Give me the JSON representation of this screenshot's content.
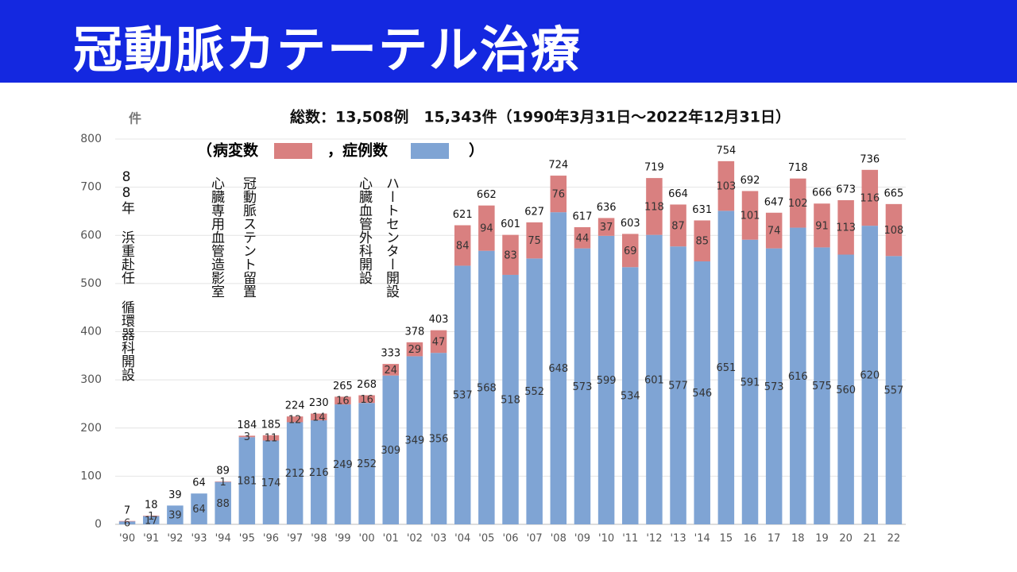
{
  "header": {
    "title": "冠動脈カテーテル治療"
  },
  "chart_data": {
    "type": "stacked_bar",
    "title": "総数：13,508例　15,343件（1990年3月31日～2022年12月31日）",
    "y_label": "件",
    "legend_open": "（",
    "legend_close": "）",
    "categories": [
      "'90",
      "'91",
      "'92",
      "'93",
      "'94",
      "'95",
      "'96",
      "'97",
      "'98",
      "'99",
      "'00",
      "'01",
      "'02",
      "'03",
      "'04",
      "'05",
      "'06",
      "'07",
      "'08",
      "'09",
      "'10",
      "'11",
      "'12",
      "'13",
      "'14",
      "15",
      "16",
      "17",
      "18",
      "19",
      "20",
      "21",
      "22"
    ],
    "series": [
      {
        "name": "，症例数",
        "color": "#7fa4d4",
        "values": [
          6,
          17,
          39,
          64,
          88,
          181,
          174,
          212,
          216,
          249,
          252,
          309,
          349,
          356,
          537,
          568,
          518,
          552,
          648,
          573,
          599,
          534,
          601,
          577,
          546,
          651,
          591,
          573,
          616,
          575,
          560,
          620,
          557
        ]
      },
      {
        "name": "病変数",
        "color": "#d98080",
        "values": [
          1,
          1,
          0,
          0,
          1,
          3,
          11,
          12,
          14,
          16,
          16,
          24,
          29,
          47,
          84,
          94,
          83,
          75,
          76,
          44,
          37,
          69,
          118,
          87,
          85,
          103,
          101,
          74,
          102,
          91,
          113,
          116,
          108
        ],
        "value_labels": [
          null,
          "1",
          null,
          null,
          "1",
          "3",
          "11",
          "12",
          "14",
          "16",
          "16",
          "24",
          "29",
          "47",
          "84",
          "94",
          "83",
          "75",
          "76",
          "44",
          "37",
          "69",
          "118",
          "87",
          "85",
          "103",
          "101",
          "74",
          "102",
          "91",
          "113",
          "116",
          "108"
        ]
      }
    ],
    "total_labels": [
      7,
      18,
      39,
      64,
      89,
      184,
      185,
      224,
      230,
      265,
      268,
      333,
      378,
      403,
      621,
      662,
      601,
      627,
      724,
      617,
      636,
      603,
      719,
      664,
      631,
      754,
      692,
      647,
      718,
      666,
      673,
      736,
      665
    ],
    "annotations": [
      "88年 浜重赴任 循環器科開設",
      "心臓専用血管造影室",
      "冠動脈ステント留置",
      "心臓血管外科開設",
      "ハートセンター開設"
    ],
    "ylim": [
      0,
      800
    ],
    "yticks": [
      0,
      100,
      200,
      300,
      400,
      500,
      600,
      700,
      800
    ],
    "grid": true
  }
}
